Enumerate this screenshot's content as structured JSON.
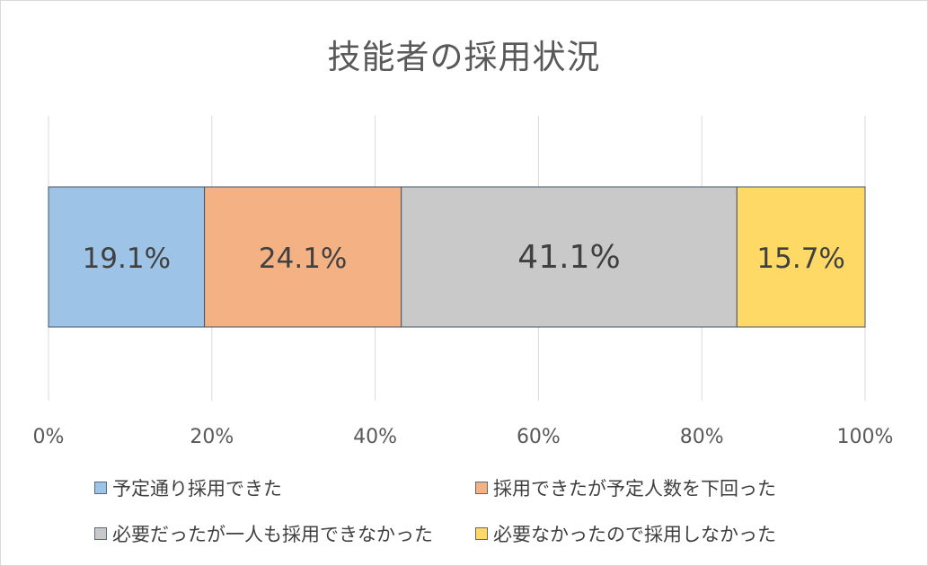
{
  "chart_data": {
    "type": "bar",
    "orientation": "horizontal",
    "stacked": true,
    "title": "技能者の採用状況",
    "xlim": [
      0,
      100
    ],
    "x_ticks": [
      "0%",
      "20%",
      "40%",
      "60%",
      "80%",
      "100%"
    ],
    "grid": true,
    "legend_position": "bottom",
    "series": [
      {
        "name": "予定通り採用できた",
        "value": 19.1,
        "label": "19.1%",
        "color": "#9dc3e6"
      },
      {
        "name": "採用できたが予定人数を下回った",
        "value": 24.1,
        "label": "24.1%",
        "color": "#f4b183"
      },
      {
        "name": "必要だったが一人も採用できなかった",
        "value": 41.1,
        "label": "41.1%",
        "color": "#c9c9c9"
      },
      {
        "name": "必要なかったので採用しなかった",
        "value": 15.7,
        "label": "15.7%",
        "color": "#ffd966"
      }
    ]
  }
}
